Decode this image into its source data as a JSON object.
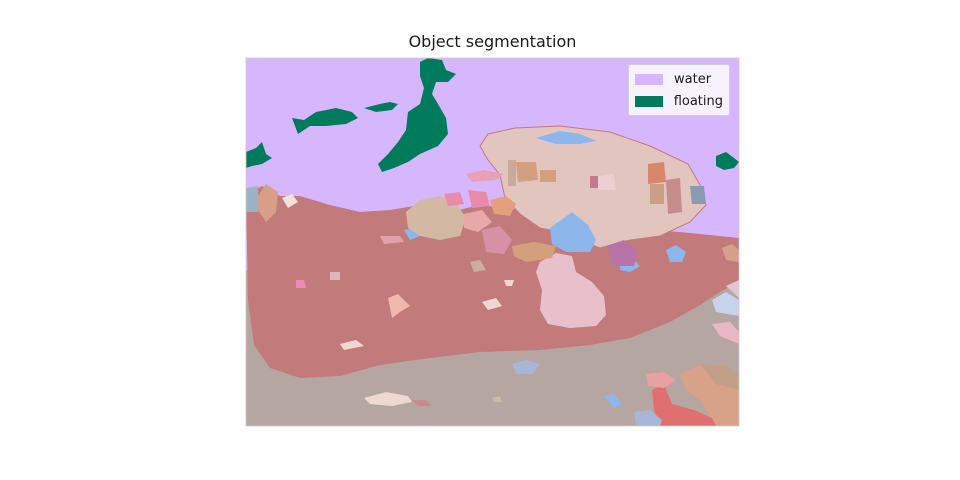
{
  "title": "Object segmentation",
  "legend": {
    "items": [
      {
        "label": "water",
        "color": "#D6B7FE"
      },
      {
        "label": "floating",
        "color": "#007B5C"
      }
    ]
  },
  "colors": {
    "water": "#D6B7FE",
    "floating": "#007B5C",
    "seabed": "#C27A7B",
    "sand": "#B6A6A1",
    "rock": "#E2C5BE"
  }
}
